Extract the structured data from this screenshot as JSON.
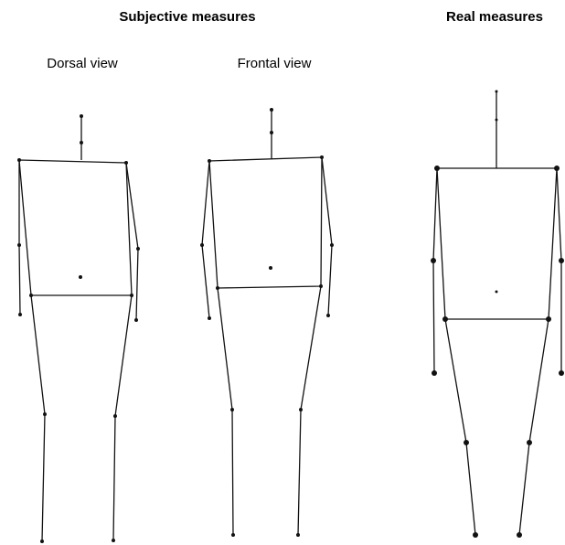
{
  "header": {
    "subjective": "Subjective measures",
    "real": "Real measures"
  },
  "views": {
    "dorsal": "Dorsal view",
    "frontal": "Frontal view"
  }
}
